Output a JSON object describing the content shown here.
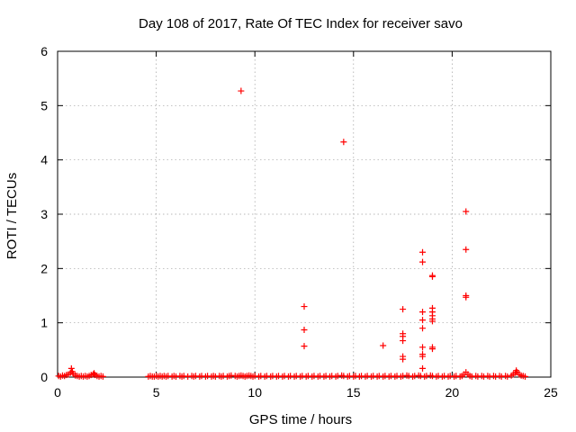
{
  "chart_data": {
    "type": "scatter",
    "title": "Day 108 of 2017, Rate Of TEC Index for receiver savo",
    "xlabel": "GPS time / hours",
    "ylabel": "ROTI / TECUs",
    "xlim": [
      0,
      25
    ],
    "ylim": [
      0,
      6
    ],
    "xticks": [
      0,
      5,
      10,
      15,
      20,
      25
    ],
    "yticks": [
      0,
      1,
      2,
      3,
      4,
      5,
      6
    ],
    "grid": true,
    "marker": "+",
    "color": "#ff0000",
    "series": [
      {
        "name": "ROTI",
        "points": [
          [
            0.05,
            0.02
          ],
          [
            0.15,
            0.01
          ],
          [
            0.25,
            0.03
          ],
          [
            0.35,
            0.02
          ],
          [
            0.45,
            0.04
          ],
          [
            0.55,
            0.05
          ],
          [
            0.65,
            0.08
          ],
          [
            0.7,
            0.16
          ],
          [
            0.75,
            0.1
          ],
          [
            0.8,
            0.06
          ],
          [
            0.9,
            0.03
          ],
          [
            1.0,
            0.02
          ],
          [
            1.1,
            0.01
          ],
          [
            1.2,
            0.02
          ],
          [
            1.3,
            0.01
          ],
          [
            1.4,
            0.02
          ],
          [
            1.5,
            0.01
          ],
          [
            1.6,
            0.02
          ],
          [
            1.7,
            0.04
          ],
          [
            1.8,
            0.05
          ],
          [
            1.85,
            0.07
          ],
          [
            1.9,
            0.04
          ],
          [
            2.0,
            0.02
          ],
          [
            2.1,
            0.01
          ],
          [
            2.2,
            0.02
          ],
          [
            2.3,
            0.01
          ],
          [
            4.6,
            0.01
          ],
          [
            4.7,
            0.02
          ],
          [
            4.8,
            0.01
          ],
          [
            4.9,
            0.01
          ],
          [
            5.0,
            0.02
          ],
          [
            5.1,
            0.01
          ],
          [
            5.2,
            0.02
          ],
          [
            5.3,
            0.01
          ],
          [
            5.4,
            0.02
          ],
          [
            5.5,
            0.01
          ],
          [
            5.6,
            0.02
          ],
          [
            5.8,
            0.01
          ],
          [
            5.9,
            0.02
          ],
          [
            6.0,
            0.01
          ],
          [
            6.2,
            0.02
          ],
          [
            6.3,
            0.01
          ],
          [
            6.4,
            0.02
          ],
          [
            6.6,
            0.01
          ],
          [
            6.8,
            0.02
          ],
          [
            6.9,
            0.01
          ],
          [
            7.0,
            0.02
          ],
          [
            7.2,
            0.01
          ],
          [
            7.3,
            0.02
          ],
          [
            7.5,
            0.01
          ],
          [
            7.6,
            0.02
          ],
          [
            7.8,
            0.01
          ],
          [
            7.9,
            0.02
          ],
          [
            8.0,
            0.01
          ],
          [
            8.2,
            0.02
          ],
          [
            8.3,
            0.01
          ],
          [
            8.4,
            0.02
          ],
          [
            8.6,
            0.01
          ],
          [
            8.7,
            0.02
          ],
          [
            8.8,
            0.03
          ],
          [
            9.0,
            0.02
          ],
          [
            9.1,
            0.01
          ],
          [
            9.2,
            0.02
          ],
          [
            9.3,
            0.03
          ],
          [
            9.4,
            0.02
          ],
          [
            9.5,
            0.01
          ],
          [
            9.6,
            0.02
          ],
          [
            9.7,
            0.03
          ],
          [
            9.8,
            0.02
          ],
          [
            9.9,
            0.01
          ],
          [
            10.0,
            0.02
          ],
          [
            10.2,
            0.01
          ],
          [
            10.3,
            0.02
          ],
          [
            10.5,
            0.01
          ],
          [
            10.6,
            0.02
          ],
          [
            10.8,
            0.01
          ],
          [
            10.9,
            0.02
          ],
          [
            11.1,
            0.01
          ],
          [
            11.2,
            0.02
          ],
          [
            11.4,
            0.01
          ],
          [
            11.5,
            0.02
          ],
          [
            11.7,
            0.01
          ],
          [
            11.8,
            0.02
          ],
          [
            12.0,
            0.01
          ],
          [
            12.1,
            0.02
          ],
          [
            12.3,
            0.01
          ],
          [
            12.4,
            0.02
          ],
          [
            12.6,
            0.01
          ],
          [
            12.7,
            0.02
          ],
          [
            12.9,
            0.01
          ],
          [
            13.0,
            0.02
          ],
          [
            13.2,
            0.01
          ],
          [
            13.3,
            0.02
          ],
          [
            13.5,
            0.01
          ],
          [
            13.6,
            0.02
          ],
          [
            13.8,
            0.01
          ],
          [
            13.9,
            0.02
          ],
          [
            14.1,
            0.01
          ],
          [
            14.2,
            0.02
          ],
          [
            14.4,
            0.03
          ],
          [
            14.5,
            0.02
          ],
          [
            14.7,
            0.01
          ],
          [
            14.8,
            0.02
          ],
          [
            15.0,
            0.01
          ],
          [
            15.1,
            0.02
          ],
          [
            15.3,
            0.01
          ],
          [
            15.4,
            0.02
          ],
          [
            15.6,
            0.01
          ],
          [
            15.7,
            0.02
          ],
          [
            15.9,
            0.01
          ],
          [
            16.0,
            0.02
          ],
          [
            16.2,
            0.01
          ],
          [
            16.3,
            0.02
          ],
          [
            16.5,
            0.01
          ],
          [
            16.6,
            0.02
          ],
          [
            16.8,
            0.01
          ],
          [
            16.9,
            0.02
          ],
          [
            17.1,
            0.01
          ],
          [
            17.2,
            0.02
          ],
          [
            17.4,
            0.01
          ],
          [
            17.5,
            0.02
          ],
          [
            17.7,
            0.03
          ],
          [
            17.8,
            0.02
          ],
          [
            18.0,
            0.01
          ],
          [
            18.1,
            0.02
          ],
          [
            18.3,
            0.03
          ],
          [
            18.4,
            0.02
          ],
          [
            18.6,
            0.01
          ],
          [
            18.7,
            0.02
          ],
          [
            18.9,
            0.03
          ],
          [
            19.0,
            0.02
          ],
          [
            19.2,
            0.01
          ],
          [
            19.3,
            0.02
          ],
          [
            19.5,
            0.01
          ],
          [
            19.6,
            0.02
          ],
          [
            19.8,
            0.01
          ],
          [
            19.9,
            0.02
          ],
          [
            20.1,
            0.01
          ],
          [
            20.2,
            0.02
          ],
          [
            20.4,
            0.01
          ],
          [
            20.5,
            0.02
          ],
          [
            20.6,
            0.05
          ],
          [
            20.7,
            0.09
          ],
          [
            20.8,
            0.05
          ],
          [
            20.9,
            0.02
          ],
          [
            21.0,
            0.01
          ],
          [
            21.2,
            0.02
          ],
          [
            21.3,
            0.01
          ],
          [
            21.5,
            0.02
          ],
          [
            21.6,
            0.01
          ],
          [
            21.8,
            0.02
          ],
          [
            21.9,
            0.01
          ],
          [
            22.1,
            0.02
          ],
          [
            22.2,
            0.01
          ],
          [
            22.4,
            0.02
          ],
          [
            22.5,
            0.01
          ],
          [
            22.7,
            0.02
          ],
          [
            22.8,
            0.01
          ],
          [
            23.0,
            0.03
          ],
          [
            23.1,
            0.05
          ],
          [
            23.2,
            0.08
          ],
          [
            23.25,
            0.12
          ],
          [
            23.3,
            0.09
          ],
          [
            23.4,
            0.05
          ],
          [
            23.5,
            0.03
          ],
          [
            23.6,
            0.02
          ],
          [
            23.7,
            0.01
          ],
          [
            9.3,
            5.27
          ],
          [
            14.5,
            4.33
          ],
          [
            12.5,
            1.3
          ],
          [
            12.5,
            0.87
          ],
          [
            12.5,
            0.57
          ],
          [
            16.5,
            0.58
          ],
          [
            17.5,
            1.25
          ],
          [
            17.5,
            0.8
          ],
          [
            17.5,
            0.75
          ],
          [
            17.5,
            0.67
          ],
          [
            17.5,
            0.38
          ],
          [
            17.5,
            0.33
          ],
          [
            18.5,
            2.3
          ],
          [
            18.5,
            2.12
          ],
          [
            18.5,
            1.2
          ],
          [
            18.5,
            1.05
          ],
          [
            18.5,
            0.9
          ],
          [
            18.5,
            0.55
          ],
          [
            18.5,
            0.42
          ],
          [
            18.5,
            0.38
          ],
          [
            18.5,
            0.16
          ],
          [
            19.0,
            1.87
          ],
          [
            19.0,
            1.85
          ],
          [
            19.0,
            1.27
          ],
          [
            19.0,
            1.2
          ],
          [
            19.0,
            1.13
          ],
          [
            19.0,
            1.07
          ],
          [
            19.0,
            1.03
          ],
          [
            19.0,
            0.55
          ],
          [
            19.0,
            0.52
          ],
          [
            20.7,
            3.05
          ],
          [
            20.7,
            2.35
          ],
          [
            20.7,
            1.5
          ],
          [
            20.7,
            1.47
          ]
        ]
      }
    ]
  }
}
